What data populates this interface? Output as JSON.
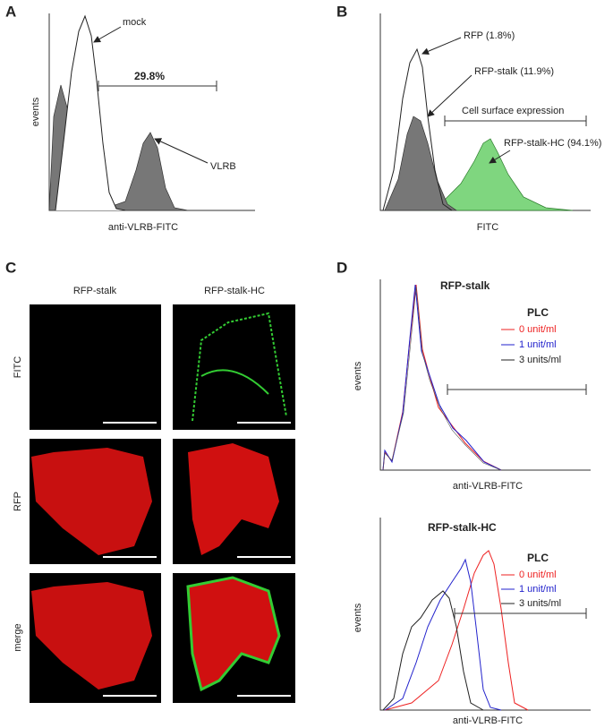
{
  "panels": [
    {
      "label": "A",
      "y_label": "events",
      "x_label": "anti-VLRB-FITC",
      "annotations": [
        "mock",
        "29.8%",
        "VLRB"
      ]
    },
    {
      "label": "B",
      "x_label": "FITC",
      "annotations": [
        "RFP (1.8%)",
        "RFP-stalk (11.9%)",
        "Cell surface expression",
        "RFP-stalk-HC (94.1%)"
      ]
    },
    {
      "label": "C",
      "columns": [
        "RFP-stalk",
        "RFP-stalk-HC"
      ],
      "rows": [
        "FITC",
        "RFP",
        "merge"
      ]
    },
    {
      "label": "D",
      "plots": [
        {
          "title": "RFP-stalk",
          "y_label": "events",
          "x_label": "anti-VLRB-FITC",
          "legend_title": "PLC",
          "legend": [
            "0 unit/ml",
            "1 unit/ml",
            "3 units/ml"
          ]
        },
        {
          "title": "RFP-stalk-HC",
          "y_label": "events",
          "x_label": "anti-VLRB-FITC",
          "legend_title": "PLC",
          "legend": [
            "0 unit/ml",
            "1 unit/ml",
            "3 units/ml"
          ]
        }
      ]
    }
  ]
}
